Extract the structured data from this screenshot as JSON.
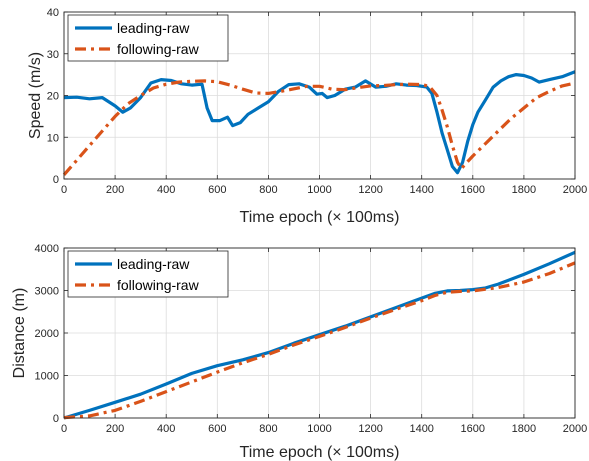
{
  "chart_data": [
    {
      "type": "line",
      "xlabel": "Time epoch (× 100ms)",
      "ylabel": "Speed (m/s)",
      "xlim": [
        0,
        2000
      ],
      "ylim": [
        0,
        40
      ],
      "xticks": [
        "0",
        "200",
        "400",
        "600",
        "800",
        "1000",
        "1200",
        "1400",
        "1600",
        "1800",
        "2000"
      ],
      "yticks": [
        "0",
        "10",
        "20",
        "30",
        "40"
      ],
      "grid": true,
      "legend_position": "top-left",
      "series": [
        {
          "name": "leading-raw",
          "color": "#0072BD",
          "style": "solid",
          "points": [
            [
              0,
              19.5
            ],
            [
              50,
              19.6
            ],
            [
              100,
              19.2
            ],
            [
              150,
              19.5
            ],
            [
              200,
              17.5
            ],
            [
              230,
              16.0
            ],
            [
              260,
              17.0
            ],
            [
              300,
              19.5
            ],
            [
              340,
              23.0
            ],
            [
              380,
              23.8
            ],
            [
              420,
              23.6
            ],
            [
              460,
              22.8
            ],
            [
              500,
              22.5
            ],
            [
              540,
              22.7
            ],
            [
              560,
              17.0
            ],
            [
              580,
              14.0
            ],
            [
              610,
              14.0
            ],
            [
              640,
              14.8
            ],
            [
              660,
              12.8
            ],
            [
              690,
              13.5
            ],
            [
              720,
              15.5
            ],
            [
              760,
              17.0
            ],
            [
              800,
              18.5
            ],
            [
              840,
              21.0
            ],
            [
              880,
              22.6
            ],
            [
              920,
              22.8
            ],
            [
              960,
              22.0
            ],
            [
              990,
              20.3
            ],
            [
              1010,
              20.5
            ],
            [
              1030,
              19.5
            ],
            [
              1060,
              20.0
            ],
            [
              1100,
              21.5
            ],
            [
              1140,
              22.0
            ],
            [
              1180,
              23.5
            ],
            [
              1220,
              22.0
            ],
            [
              1260,
              22.2
            ],
            [
              1300,
              22.8
            ],
            [
              1340,
              22.5
            ],
            [
              1380,
              22.4
            ],
            [
              1420,
              22.0
            ],
            [
              1440,
              20.5
            ],
            [
              1460,
              16.0
            ],
            [
              1480,
              11.0
            ],
            [
              1500,
              7.0
            ],
            [
              1520,
              3.0
            ],
            [
              1540,
              1.5
            ],
            [
              1560,
              4.0
            ],
            [
              1580,
              9.0
            ],
            [
              1600,
              13.0
            ],
            [
              1620,
              16.0
            ],
            [
              1650,
              19.0
            ],
            [
              1680,
              22.0
            ],
            [
              1710,
              23.5
            ],
            [
              1740,
              24.5
            ],
            [
              1770,
              25.0
            ],
            [
              1800,
              24.8
            ],
            [
              1830,
              24.2
            ],
            [
              1860,
              23.2
            ],
            [
              1900,
              23.8
            ],
            [
              1950,
              24.5
            ],
            [
              2000,
              25.7
            ]
          ]
        },
        {
          "name": "following-raw",
          "color": "#D95319",
          "style": "dashdot",
          "points": [
            [
              0,
              1.0
            ],
            [
              50,
              4.5
            ],
            [
              100,
              8.0
            ],
            [
              150,
              11.5
            ],
            [
              200,
              15.0
            ],
            [
              250,
              18.0
            ],
            [
              300,
              20.0
            ],
            [
              350,
              21.8
            ],
            [
              400,
              22.7
            ],
            [
              450,
              23.2
            ],
            [
              500,
              23.4
            ],
            [
              550,
              23.5
            ],
            [
              600,
              23.3
            ],
            [
              650,
              22.5
            ],
            [
              700,
              21.5
            ],
            [
              750,
              20.6
            ],
            [
              800,
              20.5
            ],
            [
              850,
              21.0
            ],
            [
              900,
              21.6
            ],
            [
              950,
              22.2
            ],
            [
              1000,
              22.2
            ],
            [
              1050,
              21.5
            ],
            [
              1100,
              21.4
            ],
            [
              1150,
              21.9
            ],
            [
              1200,
              22.3
            ],
            [
              1250,
              22.4
            ],
            [
              1300,
              22.6
            ],
            [
              1350,
              22.7
            ],
            [
              1400,
              22.6
            ],
            [
              1430,
              22.2
            ],
            [
              1460,
              20.0
            ],
            [
              1480,
              16.5
            ],
            [
              1500,
              12.5
            ],
            [
              1520,
              8.0
            ],
            [
              1540,
              4.0
            ],
            [
              1555,
              2.5
            ],
            [
              1570,
              3.5
            ],
            [
              1600,
              5.5
            ],
            [
              1650,
              8.5
            ],
            [
              1700,
              11.5
            ],
            [
              1750,
              14.5
            ],
            [
              1800,
              17.0
            ],
            [
              1850,
              19.5
            ],
            [
              1900,
              21.0
            ],
            [
              1950,
              22.3
            ],
            [
              2000,
              23.0
            ]
          ]
        }
      ]
    },
    {
      "type": "line",
      "xlabel": "Time epoch (× 100ms)",
      "ylabel": "Distance (m)",
      "xlim": [
        0,
        2000
      ],
      "ylim": [
        0,
        4000
      ],
      "xticks": [
        "0",
        "200",
        "400",
        "600",
        "800",
        "1000",
        "1200",
        "1400",
        "1600",
        "1800",
        "2000"
      ],
      "yticks": [
        "0",
        "1000",
        "2000",
        "3000",
        "4000"
      ],
      "grid": true,
      "legend_position": "top-left",
      "series": [
        {
          "name": "leading-raw",
          "color": "#0072BD",
          "style": "solid",
          "points": [
            [
              0,
              0
            ],
            [
              100,
              180
            ],
            [
              200,
              370
            ],
            [
              300,
              560
            ],
            [
              400,
              800
            ],
            [
              500,
              1050
            ],
            [
              600,
              1230
            ],
            [
              700,
              1370
            ],
            [
              800,
              1540
            ],
            [
              900,
              1760
            ],
            [
              1000,
              1960
            ],
            [
              1100,
              2160
            ],
            [
              1200,
              2380
            ],
            [
              1300,
              2600
            ],
            [
              1400,
              2820
            ],
            [
              1450,
              2930
            ],
            [
              1500,
              2990
            ],
            [
              1550,
              3000
            ],
            [
              1600,
              3020
            ],
            [
              1650,
              3060
            ],
            [
              1700,
              3150
            ],
            [
              1800,
              3380
            ],
            [
              1900,
              3630
            ],
            [
              2000,
              3900
            ]
          ]
        },
        {
          "name": "following-raw",
          "color": "#D95319",
          "style": "dashdot",
          "points": [
            [
              0,
              10
            ],
            [
              100,
              50
            ],
            [
              200,
              180
            ],
            [
              300,
              390
            ],
            [
              400,
              620
            ],
            [
              500,
              850
            ],
            [
              600,
              1080
            ],
            [
              700,
              1300
            ],
            [
              800,
              1500
            ],
            [
              900,
              1720
            ],
            [
              1000,
              1920
            ],
            [
              1100,
              2130
            ],
            [
              1200,
              2350
            ],
            [
              1300,
              2560
            ],
            [
              1400,
              2760
            ],
            [
              1450,
              2880
            ],
            [
              1500,
              2960
            ],
            [
              1550,
              2980
            ],
            [
              1600,
              2990
            ],
            [
              1700,
              3070
            ],
            [
              1800,
              3200
            ],
            [
              1900,
              3400
            ],
            [
              2000,
              3650
            ]
          ]
        }
      ]
    }
  ]
}
